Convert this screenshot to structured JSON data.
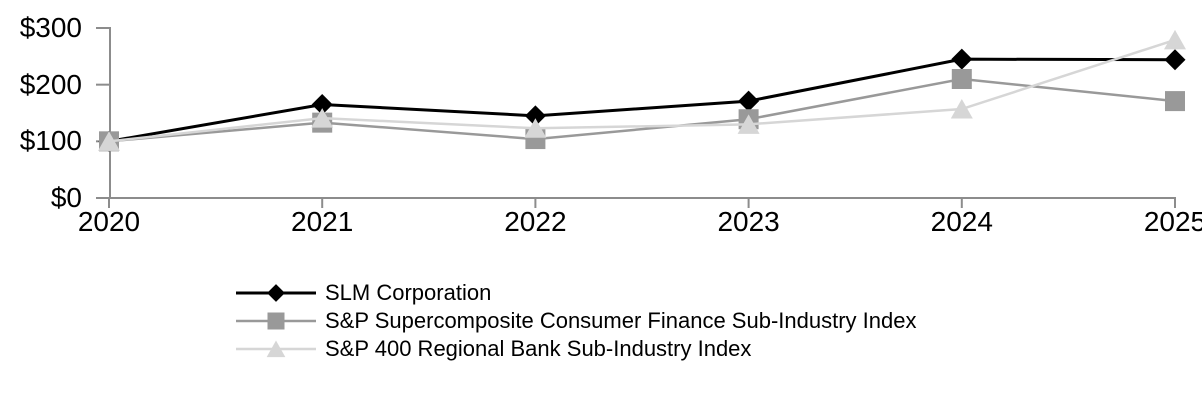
{
  "chart_data": {
    "type": "line",
    "title": "",
    "x_categories": [
      "2020",
      "2021",
      "2022",
      "2023",
      "2024",
      "2025"
    ],
    "y_axis": {
      "tick_values": [
        0,
        100,
        200,
        300
      ],
      "tick_labels": [
        "$0",
        "$100",
        "$200",
        "$300"
      ]
    },
    "ylim": [
      0,
      300
    ],
    "grid": false,
    "legend_position": "bottom-left",
    "axis_color": "#8c8c8c",
    "background_color": "#ffffff",
    "series": [
      {
        "name": "SLM Corporation",
        "marker": "diamond",
        "color": "#000000",
        "values": [
          100,
          165,
          145,
          171,
          245,
          244
        ]
      },
      {
        "name": "S&P Supercomposite Consumer Finance Sub-Industry Index",
        "marker": "square",
        "color": "#999999",
        "values": [
          100,
          133,
          104,
          139,
          210,
          171
        ]
      },
      {
        "name": "S&P 400 Regional Bank Sub-Industry Index",
        "marker": "triangle",
        "color": "#d6d6d6",
        "values": [
          100,
          141,
          123,
          130,
          157,
          279
        ]
      }
    ]
  }
}
